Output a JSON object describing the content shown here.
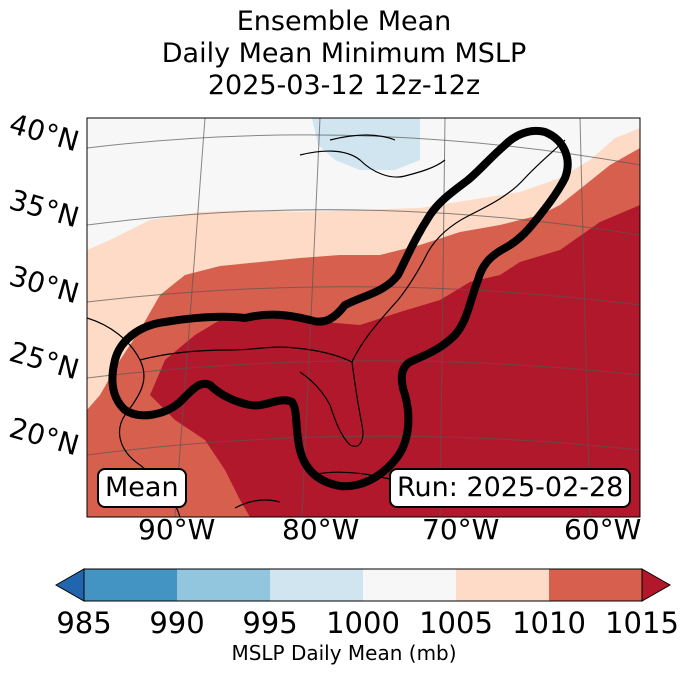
{
  "title": {
    "line1": "Ensemble Mean",
    "line2": "Daily Mean Minimum MSLP",
    "line3": "2025-03-12 12z-12z"
  },
  "map": {
    "lat_labels": [
      "40°N",
      "35°N",
      "30°N",
      "25°N",
      "20°N"
    ],
    "lon_labels": [
      "90°W",
      "80°W",
      "70°W",
      "60°W"
    ],
    "badge_left": "Mean",
    "badge_right": "Run: 2025-02-28",
    "contour_icon": "black-outline-contour"
  },
  "colorbar": {
    "ticks": [
      "985",
      "990",
      "995",
      "1000",
      "1005",
      "1010",
      "1015"
    ],
    "label": "MSLP Daily Mean (mb)",
    "colors": {
      "under": "#2166ac",
      "985-990": "#4393c3",
      "990-995": "#92c5de",
      "995-1000": "#d1e5f0",
      "1000-1005": "#f7f7f7",
      "1005-1010": "#fddbc7",
      "1010-1015": "#d6604d",
      "over": "#b2182b"
    }
  }
}
